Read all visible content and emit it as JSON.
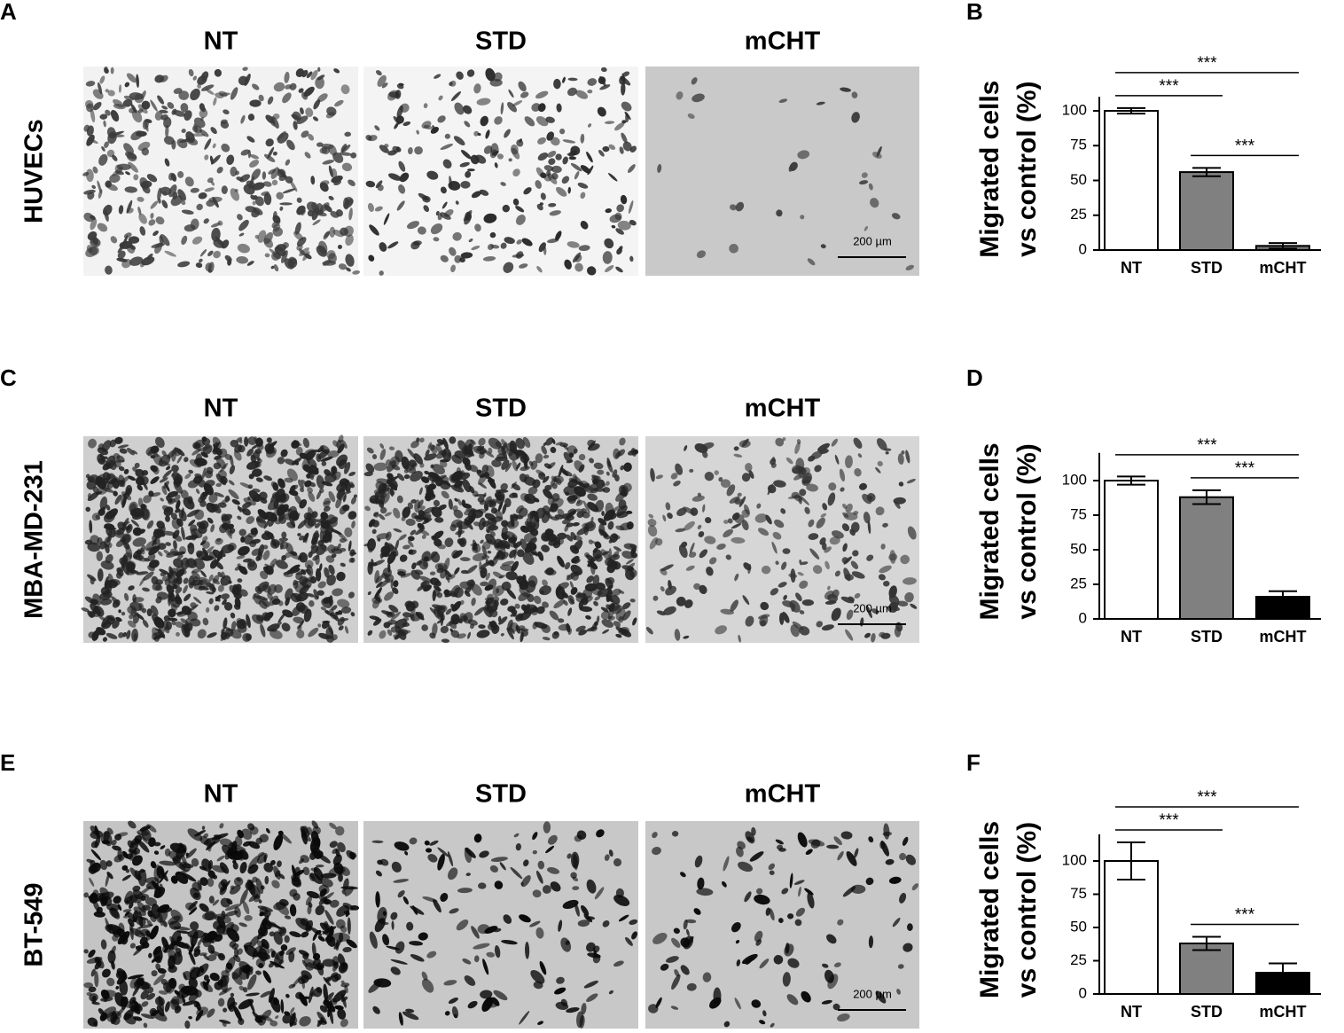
{
  "panels": [
    {
      "letter": "A",
      "row_label": "HUVECs",
      "headers": [
        "NT",
        "STD",
        "mCHT"
      ],
      "scale_bar": "200 µm"
    },
    {
      "letter": "C",
      "row_label": "MBA-MD-231",
      "headers": [
        "NT",
        "STD",
        "mCHT"
      ],
      "scale_bar": "200 µm"
    },
    {
      "letter": "E",
      "row_label": "BT-549",
      "headers": [
        "NT",
        "STD",
        "mCHT"
      ],
      "scale_bar": "200 µm"
    }
  ],
  "chart_data": [
    {
      "type": "bar",
      "letter": "B",
      "ylabel": [
        "Migrated cells",
        "vs control (%)"
      ],
      "categories": [
        "NT",
        "STD",
        "mCHT"
      ],
      "values": [
        100,
        56,
        3
      ],
      "errors": [
        2,
        3,
        2
      ],
      "colors": [
        "#ffffff",
        "#808080",
        "#6e6e6e"
      ],
      "ylim": [
        0,
        110
      ],
      "yticks": [
        0,
        25,
        50,
        75,
        100
      ],
      "brackets": [
        {
          "label": "***",
          "from": 1,
          "to": 2
        },
        {
          "label": "***",
          "from": 0,
          "to": 1
        },
        {
          "label": "***",
          "from": 0,
          "to": 2
        }
      ]
    },
    {
      "type": "bar",
      "letter": "D",
      "ylabel": [
        "Migrated cells",
        "vs control (%)"
      ],
      "categories": [
        "NT",
        "STD",
        "mCHT"
      ],
      "values": [
        100,
        88,
        16
      ],
      "errors": [
        3,
        5,
        4
      ],
      "colors": [
        "#ffffff",
        "#808080",
        "#000000"
      ],
      "ylim": [
        0,
        120
      ],
      "yticks": [
        0,
        25,
        50,
        75,
        100
      ],
      "brackets": [
        {
          "label": "***",
          "from": 1,
          "to": 2
        },
        {
          "label": "***",
          "from": 0,
          "to": 2
        }
      ]
    },
    {
      "type": "bar",
      "letter": "F",
      "ylabel": [
        "Migrated cells",
        "vs control (%)"
      ],
      "categories": [
        "NT",
        "STD",
        "mCHT"
      ],
      "values": [
        100,
        38,
        16
      ],
      "errors": [
        14,
        5,
        7
      ],
      "colors": [
        "#ffffff",
        "#808080",
        "#000000"
      ],
      "ylim": [
        0,
        120
      ],
      "yticks": [
        0,
        25,
        50,
        75,
        100
      ],
      "brackets": [
        {
          "label": "***",
          "from": 1,
          "to": 2
        },
        {
          "label": "***",
          "from": 0,
          "to": 1
        },
        {
          "label": "***",
          "from": 0,
          "to": 2
        }
      ]
    }
  ]
}
